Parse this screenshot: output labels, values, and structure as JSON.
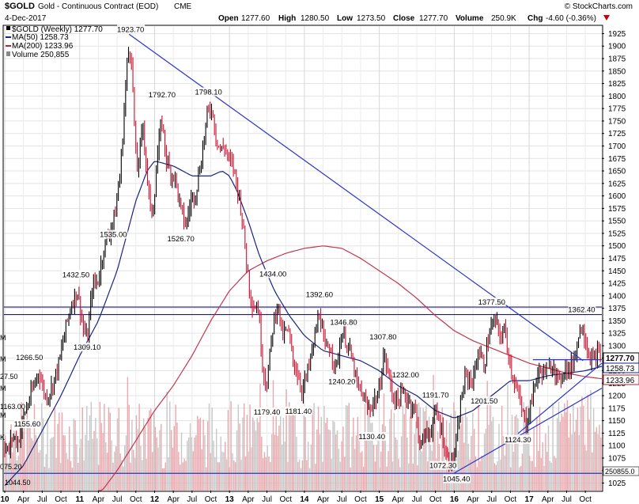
{
  "header": {
    "symbol": "$GOLD",
    "name": "Gold - Continuous Contract (EOD)",
    "exchange": "CME",
    "date": "4-Dec-2017",
    "watermark": "© StockCharts.com",
    "ohlc": {
      "open_label": "Open",
      "open": "1277.60",
      "high_label": "High",
      "high": "1280.50",
      "low_label": "Low",
      "low": "1273.50",
      "close_label": "Close",
      "close": "1277.70",
      "volume_label": "Volume",
      "volume": "250.9K",
      "chg_label": "Chg",
      "chg": "-4.60 (-0.36%)"
    }
  },
  "legend": [
    {
      "text": "$GOLD (Weekly) 1277.70",
      "color": "#000000"
    },
    {
      "text": "MA(50) 1258.73",
      "color": "#1a237e"
    },
    {
      "text": "MA(200) 1233.96",
      "color": "#b0243c"
    },
    {
      "text": "Volume 250,855",
      "color": "#666666"
    }
  ],
  "price_labels": {
    "last": "1277.70",
    "ma50": "1258.73",
    "ma200": "1233.96",
    "volume": "250855.0"
  },
  "left_volume_labels": [
    "M",
    "M",
    "27.50",
    "M",
    "1163.00",
    "M",
    "K",
    "075.20",
    "1044.50"
  ],
  "chart_data": {
    "type": "line",
    "title": "$GOLD Gold - Continuous Contract (EOD) CME",
    "yaxis": {
      "min": 1010,
      "max": 1940,
      "ticks": [
        1025,
        1050,
        1075,
        1100,
        1125,
        1150,
        1175,
        1200,
        1225,
        1250,
        1275,
        1300,
        1325,
        1350,
        1375,
        1400,
        1425,
        1450,
        1475,
        1500,
        1525,
        1550,
        1575,
        1600,
        1625,
        1650,
        1675,
        1700,
        1725,
        1750,
        1775,
        1800,
        1825,
        1850,
        1875,
        1900,
        1925
      ]
    },
    "xaxis": {
      "min": 2010.0,
      "max": 2017.97,
      "ticks": [
        {
          "t": 2010.0,
          "label": "10",
          "bold": true
        },
        {
          "t": 2010.25,
          "label": "Apr"
        },
        {
          "t": 2010.5,
          "label": "Jul"
        },
        {
          "t": 2010.75,
          "label": "Oct"
        },
        {
          "t": 2011.0,
          "label": "11",
          "bold": true
        },
        {
          "t": 2011.25,
          "label": "Apr"
        },
        {
          "t": 2011.5,
          "label": "Jul"
        },
        {
          "t": 2011.75,
          "label": "Oct"
        },
        {
          "t": 2012.0,
          "label": "12",
          "bold": true
        },
        {
          "t": 2012.25,
          "label": "Apr"
        },
        {
          "t": 2012.5,
          "label": "Jul"
        },
        {
          "t": 2012.75,
          "label": "Oct"
        },
        {
          "t": 2013.0,
          "label": "13",
          "bold": true
        },
        {
          "t": 2013.25,
          "label": "Apr"
        },
        {
          "t": 2013.5,
          "label": "Jul"
        },
        {
          "t": 2013.75,
          "label": "Oct"
        },
        {
          "t": 2014.0,
          "label": "14",
          "bold": true
        },
        {
          "t": 2014.25,
          "label": "Apr"
        },
        {
          "t": 2014.5,
          "label": "Jul"
        },
        {
          "t": 2014.75,
          "label": "Oct"
        },
        {
          "t": 2015.0,
          "label": "15",
          "bold": true
        },
        {
          "t": 2015.25,
          "label": "Apr"
        },
        {
          "t": 2015.5,
          "label": "Jul"
        },
        {
          "t": 2015.75,
          "label": "Oct"
        },
        {
          "t": 2016.0,
          "label": "16",
          "bold": true
        },
        {
          "t": 2016.25,
          "label": "Apr"
        },
        {
          "t": 2016.5,
          "label": "Jul"
        },
        {
          "t": 2016.75,
          "label": "Oct"
        },
        {
          "t": 2017.0,
          "label": "17",
          "bold": true
        },
        {
          "t": 2017.25,
          "label": "Apr"
        },
        {
          "t": 2017.5,
          "label": "Jul"
        },
        {
          "t": 2017.75,
          "label": "Oct"
        }
      ]
    },
    "price_anchors": [
      [
        2010.0,
        1100
      ],
      [
        2010.05,
        1085
      ],
      [
        2010.1,
        1120
      ],
      [
        2010.18,
        1108
      ],
      [
        2010.25,
        1160
      ],
      [
        2010.35,
        1200
      ],
      [
        2010.45,
        1250
      ],
      [
        2010.55,
        1195
      ],
      [
        2010.62,
        1215
      ],
      [
        2010.72,
        1262
      ],
      [
        2010.82,
        1340
      ],
      [
        2010.9,
        1390
      ],
      [
        2010.97,
        1410
      ],
      [
        2011.05,
        1335
      ],
      [
        2011.1,
        1309
      ],
      [
        2011.17,
        1420
      ],
      [
        2011.25,
        1432
      ],
      [
        2011.32,
        1495
      ],
      [
        2011.4,
        1530
      ],
      [
        2011.47,
        1560
      ],
      [
        2011.55,
        1660
      ],
      [
        2011.62,
        1840
      ],
      [
        2011.66,
        1900
      ],
      [
        2011.69,
        1880
      ],
      [
        2011.72,
        1780
      ],
      [
        2011.76,
        1640
      ],
      [
        2011.8,
        1690
      ],
      [
        2011.85,
        1740
      ],
      [
        2011.9,
        1640
      ],
      [
        2011.95,
        1560
      ],
      [
        2011.99,
        1590
      ],
      [
        2012.05,
        1700
      ],
      [
        2012.1,
        1750
      ],
      [
        2012.15,
        1680
      ],
      [
        2012.2,
        1650
      ],
      [
        2012.27,
        1640
      ],
      [
        2012.35,
        1570
      ],
      [
        2012.42,
        1540
      ],
      [
        2012.48,
        1590
      ],
      [
        2012.55,
        1610
      ],
      [
        2012.62,
        1670
      ],
      [
        2012.7,
        1760
      ],
      [
        2012.76,
        1780
      ],
      [
        2012.82,
        1720
      ],
      [
        2012.88,
        1690
      ],
      [
        2012.94,
        1700
      ],
      [
        2012.99,
        1670
      ],
      [
        2013.05,
        1660
      ],
      [
        2013.1,
        1620
      ],
      [
        2013.15,
        1580
      ],
      [
        2013.22,
        1480
      ],
      [
        2013.28,
        1400
      ],
      [
        2013.32,
        1380
      ],
      [
        2013.38,
        1380
      ],
      [
        2013.45,
        1250
      ],
      [
        2013.5,
        1225
      ],
      [
        2013.58,
        1340
      ],
      [
        2013.64,
        1390
      ],
      [
        2013.7,
        1320
      ],
      [
        2013.78,
        1330
      ],
      [
        2013.85,
        1270
      ],
      [
        2013.92,
        1240
      ],
      [
        2013.97,
        1210
      ],
      [
        2014.05,
        1250
      ],
      [
        2014.12,
        1300
      ],
      [
        2014.2,
        1370
      ],
      [
        2014.27,
        1290
      ],
      [
        2014.35,
        1300
      ],
      [
        2014.42,
        1250
      ],
      [
        2014.5,
        1330
      ],
      [
        2014.56,
        1310
      ],
      [
        2014.62,
        1280
      ],
      [
        2014.7,
        1220
      ],
      [
        2014.78,
        1200
      ],
      [
        2014.85,
        1170
      ],
      [
        2014.92,
        1190
      ],
      [
        2014.99,
        1200
      ],
      [
        2015.05,
        1280
      ],
      [
        2015.1,
        1260
      ],
      [
        2015.18,
        1200
      ],
      [
        2015.25,
        1190
      ],
      [
        2015.32,
        1205
      ],
      [
        2015.4,
        1190
      ],
      [
        2015.48,
        1170
      ],
      [
        2015.55,
        1095
      ],
      [
        2015.6,
        1120
      ],
      [
        2015.68,
        1130
      ],
      [
        2015.75,
        1165
      ],
      [
        2015.82,
        1140
      ],
      [
        2015.9,
        1075
      ],
      [
        2015.96,
        1065
      ],
      [
        2016.02,
        1090
      ],
      [
        2016.08,
        1180
      ],
      [
        2016.15,
        1240
      ],
      [
        2016.25,
        1230
      ],
      [
        2016.32,
        1290
      ],
      [
        2016.4,
        1260
      ],
      [
        2016.47,
        1330
      ],
      [
        2016.55,
        1350
      ],
      [
        2016.6,
        1320
      ],
      [
        2016.68,
        1330
      ],
      [
        2016.75,
        1260
      ],
      [
        2016.82,
        1220
      ],
      [
        2016.9,
        1170
      ],
      [
        2016.96,
        1145
      ],
      [
        2017.03,
        1190
      ],
      [
        2017.1,
        1240
      ],
      [
        2017.18,
        1250
      ],
      [
        2017.25,
        1245
      ],
      [
        2017.32,
        1270
      ],
      [
        2017.4,
        1220
      ],
      [
        2017.47,
        1260
      ],
      [
        2017.55,
        1250
      ],
      [
        2017.62,
        1290
      ],
      [
        2017.67,
        1330
      ],
      [
        2017.72,
        1340
      ],
      [
        2017.78,
        1290
      ],
      [
        2017.85,
        1270
      ],
      [
        2017.92,
        1285
      ],
      [
        2017.97,
        1278
      ]
    ],
    "ma50_anchors": [
      [
        2010.0,
        1020
      ],
      [
        2010.25,
        1060
      ],
      [
        2010.5,
        1130
      ],
      [
        2010.75,
        1200
      ],
      [
        2011.0,
        1280
      ],
      [
        2011.25,
        1350
      ],
      [
        2011.5,
        1450
      ],
      [
        2011.75,
        1590
      ],
      [
        2011.9,
        1650
      ],
      [
        2012.0,
        1670
      ],
      [
        2012.25,
        1660
      ],
      [
        2012.5,
        1640
      ],
      [
        2012.75,
        1640
      ],
      [
        2012.9,
        1650
      ],
      [
        2013.0,
        1640
      ],
      [
        2013.1,
        1610
      ],
      [
        2013.25,
        1550
      ],
      [
        2013.4,
        1480
      ],
      [
        2013.6,
        1410
      ],
      [
        2013.8,
        1360
      ],
      [
        2014.0,
        1320
      ],
      [
        2014.25,
        1290
      ],
      [
        2014.5,
        1280
      ],
      [
        2014.75,
        1270
      ],
      [
        2015.0,
        1250
      ],
      [
        2015.25,
        1220
      ],
      [
        2015.5,
        1200
      ],
      [
        2015.75,
        1170
      ],
      [
        2016.0,
        1155
      ],
      [
        2016.25,
        1170
      ],
      [
        2016.5,
        1200
      ],
      [
        2016.75,
        1230
      ],
      [
        2017.0,
        1230
      ],
      [
        2017.25,
        1240
      ],
      [
        2017.5,
        1245
      ],
      [
        2017.75,
        1250
      ],
      [
        2017.97,
        1258.73
      ]
    ],
    "ma200_anchors": [
      [
        2011.25,
        1000
      ],
      [
        2011.5,
        1050
      ],
      [
        2011.75,
        1110
      ],
      [
        2012.0,
        1170
      ],
      [
        2012.25,
        1220
      ],
      [
        2012.5,
        1280
      ],
      [
        2012.75,
        1350
      ],
      [
        2013.0,
        1410
      ],
      [
        2013.25,
        1450
      ],
      [
        2013.5,
        1470
      ],
      [
        2013.75,
        1485
      ],
      [
        2014.0,
        1495
      ],
      [
        2014.25,
        1500
      ],
      [
        2014.5,
        1495
      ],
      [
        2014.75,
        1475
      ],
      [
        2015.0,
        1450
      ],
      [
        2015.25,
        1425
      ],
      [
        2015.5,
        1395
      ],
      [
        2015.75,
        1360
      ],
      [
        2016.0,
        1330
      ],
      [
        2016.25,
        1310
      ],
      [
        2016.5,
        1295
      ],
      [
        2016.75,
        1280
      ],
      [
        2017.0,
        1265
      ],
      [
        2017.25,
        1255
      ],
      [
        2017.5,
        1245
      ],
      [
        2017.75,
        1238
      ],
      [
        2017.97,
        1233.96
      ]
    ],
    "annotations": [
      {
        "t": 2011.68,
        "v": 1923.7,
        "text": "1923.70",
        "pos": "above"
      },
      {
        "t": 2012.1,
        "v": 1792.7,
        "text": "1792.70",
        "pos": "above"
      },
      {
        "t": 2012.72,
        "v": 1798.1,
        "text": "1798.10",
        "pos": "above"
      },
      {
        "t": 2011.45,
        "v": 1535.0,
        "text": "1535.00",
        "pos": "below"
      },
      {
        "t": 2012.35,
        "v": 1526.7,
        "text": "1526.70",
        "pos": "below"
      },
      {
        "t": 2010.95,
        "v": 1432.5,
        "text": "1432.50",
        "pos": "above"
      },
      {
        "t": 2011.1,
        "v": 1309.1,
        "text": "1309.10",
        "pos": "below"
      },
      {
        "t": 2010.33,
        "v": 1266.5,
        "text": "1266.50",
        "pos": "above"
      },
      {
        "t": 2010.3,
        "v": 1155.6,
        "text": "1155.60",
        "pos": "below"
      },
      {
        "t": 2013.58,
        "v": 1434.0,
        "text": "1434.00",
        "pos": "above"
      },
      {
        "t": 2014.2,
        "v": 1392.6,
        "text": "1392.60",
        "pos": "above"
      },
      {
        "t": 2014.3,
        "v": 1346.8,
        "text": "1346.80",
        "pos": "right"
      },
      {
        "t": 2013.5,
        "v": 1179.4,
        "text": "1179.40",
        "pos": "below"
      },
      {
        "t": 2013.92,
        "v": 1181.4,
        "text": "1181.40",
        "pos": "below"
      },
      {
        "t": 2014.5,
        "v": 1240.2,
        "text": "1240.20",
        "pos": "below"
      },
      {
        "t": 2015.05,
        "v": 1307.8,
        "text": "1307.80",
        "pos": "above"
      },
      {
        "t": 2015.35,
        "v": 1232.0,
        "text": "1232.00",
        "pos": "above"
      },
      {
        "t": 2014.9,
        "v": 1130.4,
        "text": "1130.40",
        "pos": "below"
      },
      {
        "t": 2015.75,
        "v": 1191.7,
        "text": "1191.70",
        "pos": "above"
      },
      {
        "t": 2015.85,
        "v": 1072.3,
        "text": "1072.30",
        "pos": "below"
      },
      {
        "t": 2016.03,
        "v": 1045.4,
        "text": "1045.40",
        "pos": "below"
      },
      {
        "t": 2016.5,
        "v": 1377.5,
        "text": "1377.50",
        "pos": "above"
      },
      {
        "t": 2016.4,
        "v": 1201.5,
        "text": "1201.50",
        "pos": "below"
      },
      {
        "t": 2016.85,
        "v": 1124.3,
        "text": "1124.30",
        "pos": "below"
      },
      {
        "t": 2017.7,
        "v": 1362.4,
        "text": "1362.40",
        "pos": "above"
      }
    ],
    "trendlines": [
      {
        "from": [
          2011.66,
          1923.7
        ],
        "to": [
          2017.72,
          1270
        ],
        "color": "#2b35c9"
      },
      {
        "from": [
          2016.0,
          1045
        ],
        "to": [
          2017.97,
          1215
        ],
        "color": "#2b35c9"
      },
      {
        "from": [
          2016.85,
          1124
        ],
        "to": [
          2017.97,
          1265
        ],
        "color": "#2b35c9"
      },
      {
        "from": [
          2017.05,
          1272
        ],
        "to": [
          2017.97,
          1272
        ],
        "color": "#2b35c9"
      }
    ],
    "hlines": [
      {
        "v": 1377.5,
        "color": "#1a1a8c"
      },
      {
        "v": 1362.4,
        "color": "#1a1a8c"
      },
      {
        "v": 1044.5,
        "color": "#2b35c9"
      }
    ],
    "volume_note": "volume histogram overlaid in lower portion, last value 250,855"
  }
}
